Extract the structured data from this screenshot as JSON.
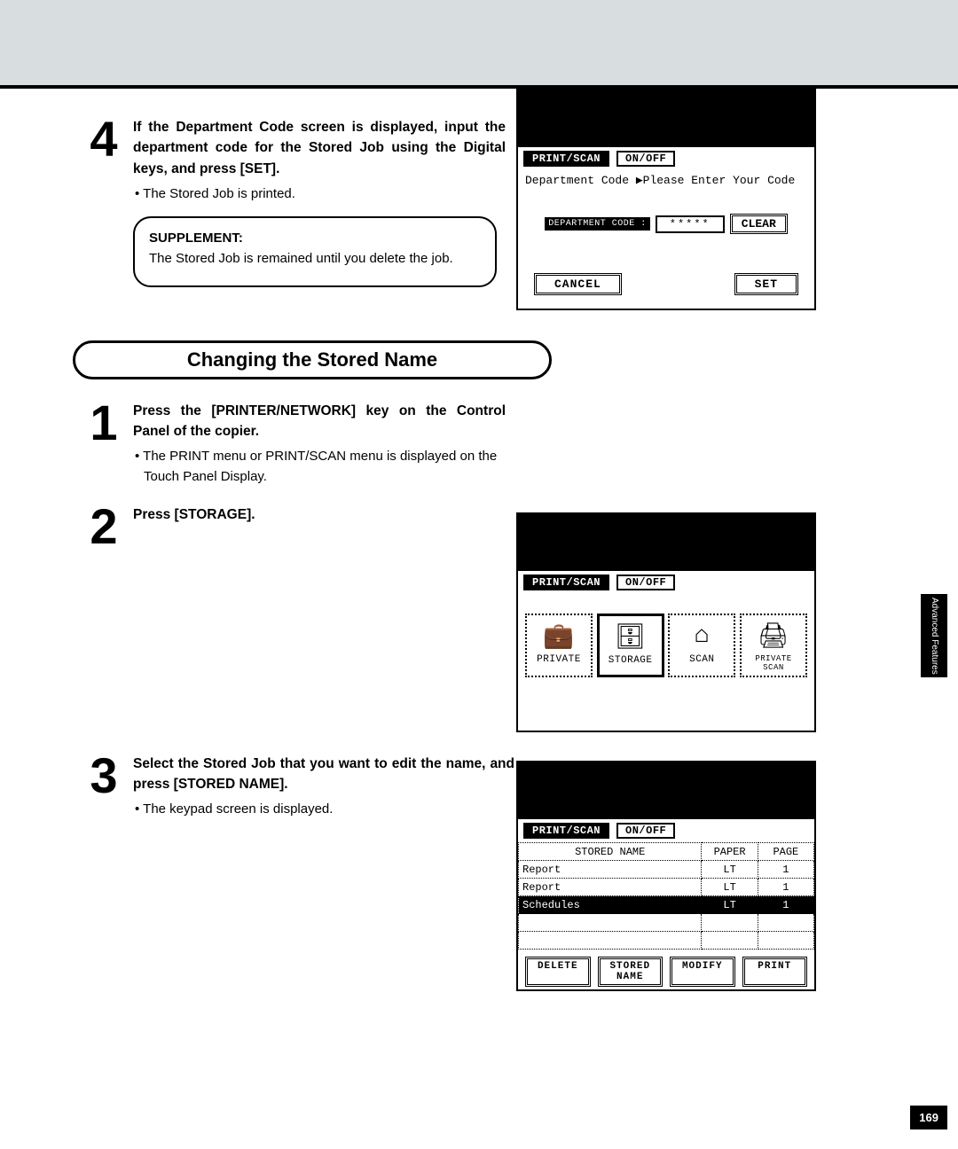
{
  "page_number": "169",
  "side_tab": "Advanced Features",
  "step4": {
    "num": "4",
    "title": "If the Department Code screen is displayed, input the department code for the Stored Job using the Digital keys, and press [SET].",
    "bullet": "The Stored Job is printed.",
    "supp_title": "SUPPLEMENT:",
    "supp_text": "The Stored Job is remained until you delete the job."
  },
  "section_heading": "Changing the Stored Name",
  "s1": {
    "num": "1",
    "title": "Press the [PRINTER/NETWORK] key on the Control Panel of the copier.",
    "bullet": "The PRINT menu or PRINT/SCAN menu is displayed on the Touch Panel Display."
  },
  "s2": {
    "num": "2",
    "title": "Press [STORAGE]."
  },
  "s3": {
    "num": "3",
    "title": "Select the Stored Job that you want to edit the name, and press [STORED NAME].",
    "bullet": "The keypad screen is displayed."
  },
  "lcd_common": {
    "print_scan": "PRINT/SCAN",
    "on_off": "ON/OFF"
  },
  "lcd1": {
    "msg": "Department Code ▶Please Enter Your Code",
    "label": "DEPARTMENT CODE :",
    "value": "*****",
    "clear": "CLEAR",
    "cancel": "CANCEL",
    "set": "SET"
  },
  "lcd2": {
    "private": "PRIVATE",
    "storage": "STORAGE",
    "scan": "SCAN",
    "private_scan": "PRIVATE SCAN"
  },
  "lcd3": {
    "h_name": "STORED NAME",
    "h_paper": "PAPER",
    "h_page": "PAGE",
    "rows": [
      {
        "name": "Report",
        "paper": "LT",
        "page": "1",
        "sel": false
      },
      {
        "name": "Report",
        "paper": "LT",
        "page": "1",
        "sel": false
      },
      {
        "name": "Schedules",
        "paper": "LT",
        "page": "1",
        "sel": true
      },
      {
        "name": "",
        "paper": "",
        "page": "",
        "sel": false
      },
      {
        "name": "",
        "paper": "",
        "page": "",
        "sel": false
      }
    ],
    "delete": "DELETE",
    "stored_name": "STORED NAME",
    "modify": "MODIFY",
    "print": "PRINT"
  }
}
